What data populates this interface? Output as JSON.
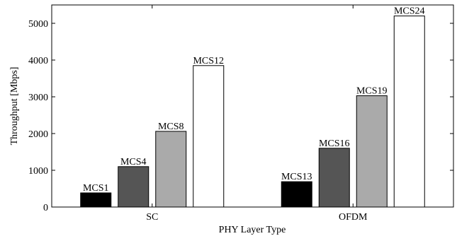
{
  "chart_data": {
    "type": "bar",
    "categories": [
      "SC",
      "OFDM"
    ],
    "groups": [
      {
        "category": "SC",
        "bars": [
          {
            "label": "MCS1",
            "value": 385,
            "color": "#000000"
          },
          {
            "label": "MCS4",
            "value": 1100,
            "color": "#555555"
          },
          {
            "label": "MCS8",
            "value": 2060,
            "color": "#aaaaaa"
          },
          {
            "label": "MCS12",
            "value": 3850,
            "color": "#ffffff"
          }
        ]
      },
      {
        "category": "OFDM",
        "bars": [
          {
            "label": "MCS13",
            "value": 690,
            "color": "#000000"
          },
          {
            "label": "MCS16",
            "value": 1600,
            "color": "#555555"
          },
          {
            "label": "MCS19",
            "value": 3030,
            "color": "#aaaaaa"
          },
          {
            "label": "MCS24",
            "value": 5200,
            "color": "#ffffff"
          }
        ]
      }
    ],
    "xlabel": "PHY Layer Type",
    "ylabel": "Throughput [Mbps]",
    "ylim": [
      0,
      5500
    ],
    "yticks": [
      0,
      1000,
      2000,
      3000,
      4000,
      5000
    ],
    "grid": false,
    "legend": "none"
  }
}
